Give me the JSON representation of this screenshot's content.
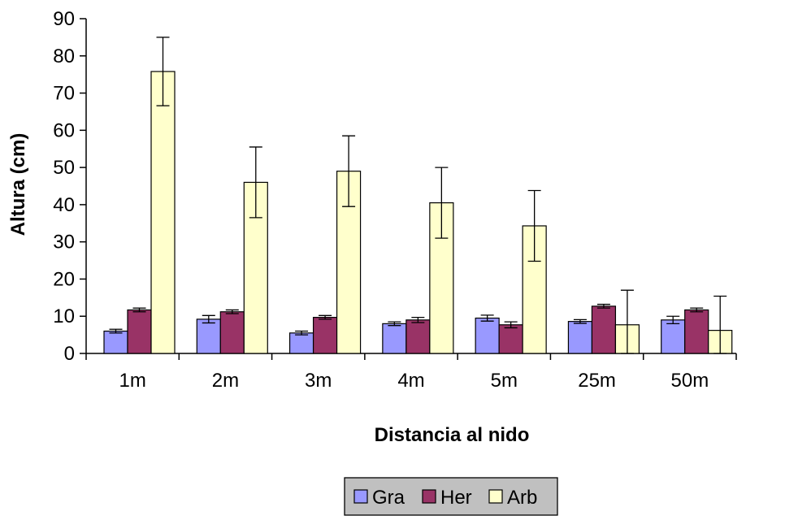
{
  "chart_data": {
    "type": "bar",
    "xlabel": "Distancia al nido",
    "ylabel": "Altura (cm)",
    "ylim": [
      0,
      90
    ],
    "yticks": [
      0,
      10,
      20,
      30,
      40,
      50,
      60,
      70,
      80,
      90
    ],
    "grid": false,
    "legend_position": "bottom",
    "categories": [
      "1m",
      "2m",
      "3m",
      "4m",
      "5m",
      "25m",
      "50m"
    ],
    "series": [
      {
        "name": "Gra",
        "color": "#9999ff",
        "values": [
          6,
          9.2,
          5.5,
          8,
          9.5,
          8.6,
          9
        ],
        "errors": [
          0.5,
          1,
          0.5,
          0.5,
          0.8,
          0.5,
          1
        ]
      },
      {
        "name": "Her",
        "color": "#993366",
        "values": [
          11.7,
          11.2,
          9.7,
          9,
          7.7,
          12.7,
          11.7
        ],
        "errors": [
          0.5,
          0.5,
          0.5,
          0.7,
          0.8,
          0.5,
          0.5
        ]
      },
      {
        "name": "Arb",
        "color": "#ffffcc",
        "values": [
          75.8,
          46,
          49,
          40.5,
          34.3,
          7.7,
          6.2
        ],
        "errors": [
          9.2,
          9.5,
          9.5,
          9.5,
          9.5,
          9.3,
          9.2
        ]
      }
    ]
  }
}
